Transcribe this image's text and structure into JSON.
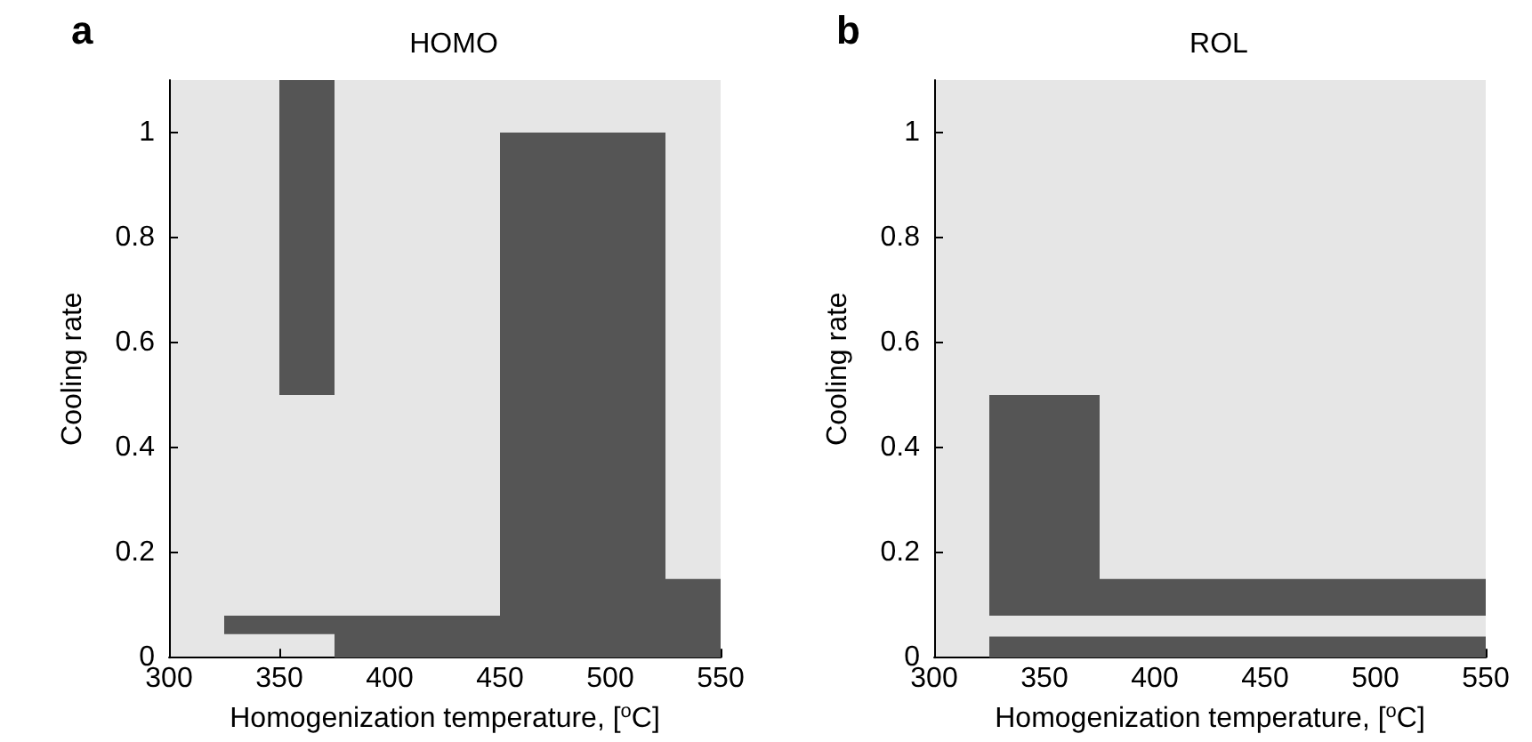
{
  "chart_data": [
    {
      "type": "histogram",
      "title": "HOMO",
      "xlabel": "Homogenization temperature, [$^{o}$C]",
      "ylabel": "Cooling rate",
      "annotations": [
        "a"
      ],
      "xlim": [
        300,
        550
      ],
      "xticks": [
        300,
        350,
        400,
        450,
        500,
        550
      ],
      "ylim": [
        0,
        1.1
      ],
      "yticks": [
        0,
        0.2,
        0.4,
        0.6,
        0.8,
        1
      ],
      "bins": [
        325,
        350,
        375,
        450,
        525,
        550
      ],
      "series": [
        {
          "color": "#555555",
          "base": [
            0.045,
            null,
            0,
            0,
            0
          ],
          "values": [
            0.035,
            null,
            0.08,
            1.0,
            0.15
          ]
        },
        {
          "color": "#555555",
          "base": [
            null,
            0.045,
            null,
            null,
            null
          ],
          "values": [
            null,
            0.035,
            null,
            null,
            null
          ]
        },
        {
          "color": "#555555",
          "base": [
            null,
            0.5,
            null,
            null,
            null
          ],
          "values": [
            null,
            0.6,
            null,
            null,
            null
          ]
        }
      ]
    },
    {
      "type": "histogram",
      "title": "ROL",
      "xlabel": "Homogenization temperature, [$^{o}$C]",
      "ylabel": "Cooling rate",
      "annotations": [
        "b"
      ],
      "xlim": [
        300,
        550
      ],
      "xticks": [
        300,
        350,
        400,
        450,
        500,
        550
      ],
      "ylim": [
        0,
        1.1
      ],
      "yticks": [
        0,
        0.2,
        0.4,
        0.6,
        0.8,
        1
      ],
      "bins": [
        325,
        375,
        550
      ],
      "series": [
        {
          "color": "#555555",
          "base": [
            0,
            0
          ],
          "values": [
            0.04,
            0.04
          ]
        },
        {
          "color": "#555555",
          "base": [
            0.08,
            0.08
          ],
          "values": [
            0.42,
            0.07
          ]
        }
      ]
    }
  ]
}
